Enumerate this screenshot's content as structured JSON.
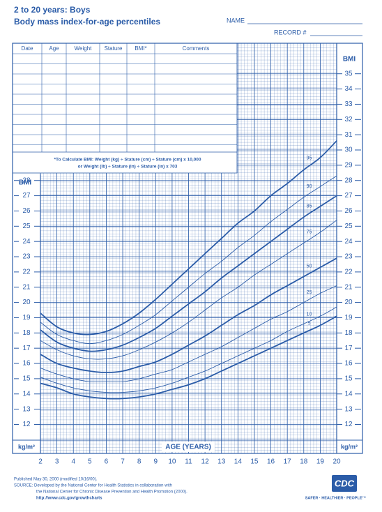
{
  "header": {
    "title": "2 to 20 years: Boys",
    "subtitle": "Body mass index-for-age percentiles",
    "name_label": "NAME",
    "record_label": "RECORD #"
  },
  "table": {
    "columns": [
      "Date",
      "Age",
      "Weight",
      "Stature",
      "BMI*",
      "Comments"
    ]
  },
  "formula": [
    "*To Calculate BMI: Weight (kg) ÷ Stature (cm) ÷ Stature (cm) x 10,000",
    "or Weight (lb) ÷ Stature (in) ÷ Stature (in) x 703"
  ],
  "chart_data": {
    "type": "line",
    "y_label": "BMI",
    "unit_label": "kg/m²",
    "x_label": "AGE (YEARS)",
    "x": [
      2,
      3,
      4,
      5,
      6,
      7,
      8,
      9,
      10,
      11,
      12,
      13,
      14,
      15,
      16,
      17,
      18,
      19,
      20
    ],
    "xlim": [
      2,
      20
    ],
    "ylim": [
      10.1,
      37
    ],
    "xticks": [
      2,
      3,
      4,
      5,
      6,
      7,
      8,
      9,
      10,
      11,
      12,
      13,
      14,
      15,
      16,
      17,
      18,
      19,
      20
    ],
    "yticks": [
      12,
      13,
      14,
      15,
      16,
      17,
      18,
      19,
      20,
      21,
      22,
      23,
      24,
      25,
      26,
      27,
      28,
      29,
      30,
      31,
      32,
      33,
      34,
      35
    ],
    "yticks_left": [
      12,
      13,
      14,
      15,
      16,
      17,
      18,
      19,
      20,
      21,
      22,
      23,
      24,
      25,
      26,
      27,
      28
    ],
    "grid": true,
    "color": "#2b5ca8",
    "series": [
      {
        "name": "95",
        "weight": "bold",
        "values": [
          19.3,
          18.4,
          18.0,
          17.9,
          18.1,
          18.6,
          19.3,
          20.2,
          21.2,
          22.2,
          23.2,
          24.2,
          25.2,
          26.0,
          27.0,
          27.8,
          28.7,
          29.5,
          30.6
        ]
      },
      {
        "name": "90",
        "weight": "light",
        "values": [
          18.7,
          17.9,
          17.5,
          17.3,
          17.5,
          17.9,
          18.5,
          19.2,
          20.1,
          21.0,
          21.9,
          22.7,
          23.6,
          24.4,
          25.3,
          26.1,
          26.9,
          27.6,
          28.3
        ]
      },
      {
        "name": "85",
        "weight": "bold",
        "values": [
          18.2,
          17.4,
          17.0,
          16.8,
          16.9,
          17.2,
          17.7,
          18.3,
          19.1,
          19.9,
          20.7,
          21.6,
          22.4,
          23.2,
          24.0,
          24.8,
          25.6,
          26.3,
          27.0
        ]
      },
      {
        "name": "75",
        "weight": "light",
        "values": [
          17.5,
          16.9,
          16.5,
          16.3,
          16.3,
          16.5,
          16.9,
          17.4,
          18.0,
          18.7,
          19.5,
          20.3,
          21.0,
          21.8,
          22.5,
          23.2,
          23.9,
          24.6,
          25.4
        ]
      },
      {
        "name": "50",
        "weight": "bold",
        "values": [
          16.6,
          16.0,
          15.7,
          15.5,
          15.4,
          15.5,
          15.8,
          16.1,
          16.6,
          17.2,
          17.8,
          18.5,
          19.2,
          19.8,
          20.5,
          21.1,
          21.7,
          22.3,
          22.9
        ]
      },
      {
        "name": "25",
        "weight": "light",
        "values": [
          15.7,
          15.3,
          15.0,
          14.8,
          14.8,
          14.8,
          15.0,
          15.3,
          15.6,
          16.1,
          16.6,
          17.1,
          17.7,
          18.3,
          18.9,
          19.4,
          20.0,
          20.6,
          21.1
        ]
      },
      {
        "name": "10",
        "weight": "light",
        "values": [
          15.1,
          14.7,
          14.4,
          14.2,
          14.1,
          14.1,
          14.2,
          14.4,
          14.7,
          15.1,
          15.5,
          16.0,
          16.5,
          17.0,
          17.5,
          18.1,
          18.6,
          19.1,
          19.7
        ]
      },
      {
        "name": "5",
        "weight": "bold",
        "values": [
          14.7,
          14.4,
          14.0,
          13.8,
          13.7,
          13.7,
          13.8,
          14.0,
          14.3,
          14.6,
          15.0,
          15.5,
          16.0,
          16.5,
          17.0,
          17.5,
          18.0,
          18.5,
          19.1
        ]
      }
    ]
  },
  "footer": {
    "published": "Published May 30, 2000 (modified 10/16/00).",
    "source": [
      "SOURCE: Developed by the National Center for Health Statistics in collaboration with",
      "the National Center for Chronic Disease Prevention and Health Promotion (2000)."
    ],
    "url": "http://www.cdc.gov/growthcharts",
    "logo": "CDC",
    "tagline": "SAFER · HEALTHIER · PEOPLE™"
  }
}
